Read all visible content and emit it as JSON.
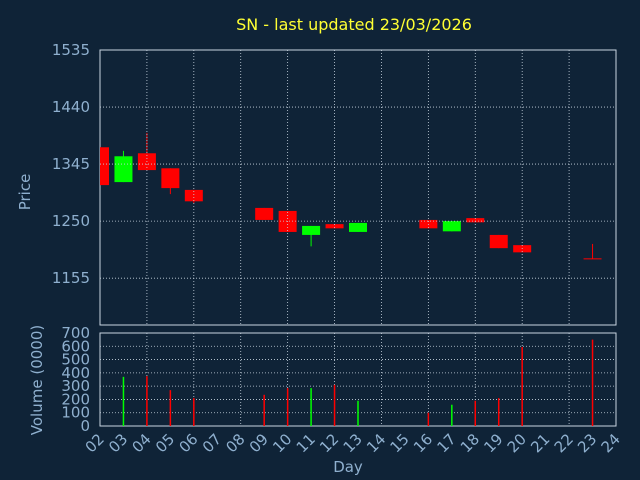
{
  "chart_data": [
    {
      "type": "candlestick",
      "title": "SN - last updated 23/03/2026",
      "y_label": "Price",
      "x": [
        2,
        3,
        4,
        5,
        6,
        9,
        10,
        11,
        12,
        13,
        16,
        17,
        18,
        19,
        20,
        23
      ],
      "open": [
        1373,
        1315,
        1363,
        1338,
        1302,
        1272,
        1267,
        1227,
        1245,
        1232,
        1252,
        1233,
        1255,
        1227,
        1210,
        1188
      ],
      "high": [
        1373,
        1367,
        1397,
        1338,
        1302,
        1272,
        1267,
        1242,
        1245,
        1247,
        1252,
        1250,
        1255,
        1227,
        1210,
        1212
      ],
      "low": [
        1310,
        1315,
        1335,
        1295,
        1280,
        1252,
        1232,
        1208,
        1238,
        1232,
        1238,
        1233,
        1248,
        1205,
        1198,
        1187
      ],
      "close": [
        1310,
        1358,
        1335,
        1305,
        1283,
        1252,
        1232,
        1242,
        1238,
        1247,
        1238,
        1250,
        1248,
        1205,
        1198,
        1187
      ],
      "up_color": "#00ff00",
      "down_color": "#ff0000",
      "xlim": [
        2,
        24
      ],
      "xticks": [
        4,
        6,
        8,
        10,
        12,
        14,
        16,
        18,
        20,
        22
      ],
      "ylim": [
        1077,
        1535
      ],
      "yticks": [
        1155,
        1250,
        1345,
        1440,
        1535
      ],
      "grid": true
    },
    {
      "type": "bar",
      "y_label": "Volume (0000)",
      "x_label": "Day",
      "x": [
        3,
        4,
        5,
        6,
        9,
        10,
        11,
        12,
        13,
        16,
        17,
        18,
        19,
        20,
        23
      ],
      "values": [
        370,
        375,
        270,
        210,
        235,
        285,
        285,
        310,
        190,
        100,
        160,
        190,
        210,
        595,
        650
      ],
      "colors": [
        "#00ff00",
        "#ff0000",
        "#ff0000",
        "#ff0000",
        "#ff0000",
        "#ff0000",
        "#00ff00",
        "#ff0000",
        "#00ff00",
        "#ff0000",
        "#00ff00",
        "#ff0000",
        "#ff0000",
        "#ff0000",
        "#ff0000"
      ],
      "xlim": [
        2,
        24
      ],
      "xticks": [
        {
          "value": 2,
          "label": "02"
        },
        {
          "value": 3,
          "label": "03"
        },
        {
          "value": 4,
          "label": "04"
        },
        {
          "value": 5,
          "label": "05"
        },
        {
          "value": 6,
          "label": "06"
        },
        {
          "value": 7,
          "label": "07"
        },
        {
          "value": 8,
          "label": "08"
        },
        {
          "value": 9,
          "label": "09"
        },
        10,
        11,
        12,
        13,
        14,
        15,
        16,
        17,
        18,
        19,
        20,
        21,
        22,
        23,
        24
      ],
      "ylim": [
        0,
        700
      ],
      "yticks": [
        0,
        100,
        200,
        300,
        400,
        500,
        600,
        700
      ],
      "grid": true
    }
  ]
}
